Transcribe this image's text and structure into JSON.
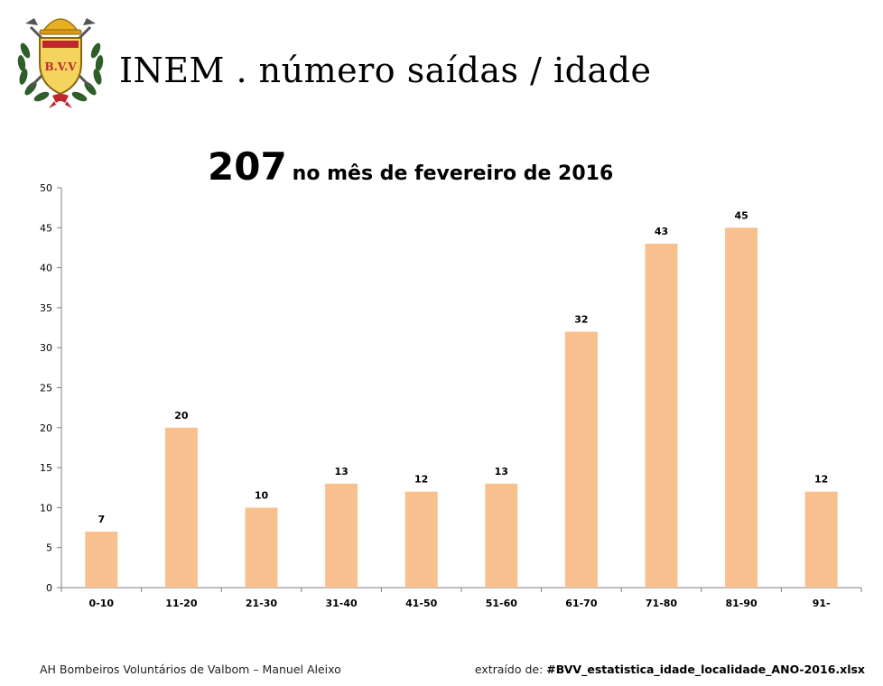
{
  "header": {
    "title": "INEM . número saídas / idade",
    "logo_text": "B.V.V"
  },
  "chart_heading": {
    "total": "207",
    "rest": "no mês de fevereiro de 2016"
  },
  "chart_data": {
    "type": "bar",
    "title": "207 no mês de fevereiro de 2016",
    "xlabel": "",
    "ylabel": "",
    "categories": [
      "0-10",
      "11-20",
      "21-30",
      "31-40",
      "41-50",
      "51-60",
      "61-70",
      "71-80",
      "81-90",
      "91-"
    ],
    "values": [
      7,
      20,
      10,
      13,
      12,
      13,
      32,
      43,
      45,
      12
    ],
    "ylim": [
      0,
      50
    ],
    "yticks": [
      0,
      5,
      10,
      15,
      20,
      25,
      30,
      35,
      40,
      45,
      50
    ],
    "grid": false,
    "data_labels": true,
    "bar_color": "#f9c08f"
  },
  "footer": {
    "left": "AH Bombeiros Voluntários de Valbom – Manuel Aleixo",
    "right_prefix": "extraído de: ",
    "right_file": "#BVV_estatistica_idade_localidade_ANO-2016.xlsx"
  },
  "colors": {
    "bar": "#f9c08f",
    "axis": "#808080",
    "logo_gold": "#e8b020",
    "logo_red": "#c0272d",
    "logo_green": "#2f5e2b"
  }
}
